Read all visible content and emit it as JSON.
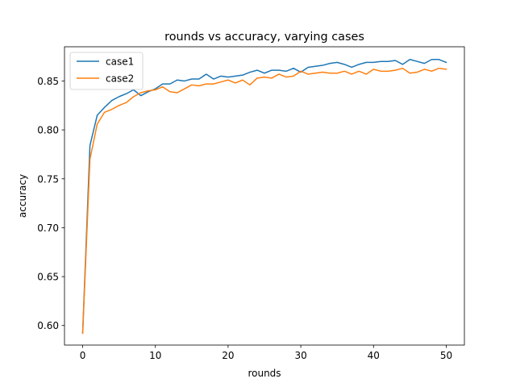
{
  "chart_data": {
    "type": "line",
    "title": "rounds vs accuracy, varying cases",
    "xlabel": "rounds",
    "ylabel": "accuracy",
    "xlim": [
      -2.5,
      52.5
    ],
    "ylim": [
      0.58,
      0.885
    ],
    "xticks": [
      0,
      10,
      20,
      30,
      40,
      50
    ],
    "xtick_labels": [
      "0",
      "10",
      "20",
      "30",
      "40",
      "50"
    ],
    "yticks": [
      0.6,
      0.65,
      0.7,
      0.75,
      0.8,
      0.85
    ],
    "ytick_labels": [
      "0.60",
      "0.65",
      "0.70",
      "0.75",
      "0.80",
      "0.85"
    ],
    "grid": false,
    "legend_position": "top-left",
    "x": [
      0,
      1,
      2,
      3,
      4,
      5,
      6,
      7,
      8,
      9,
      10,
      11,
      12,
      13,
      14,
      15,
      16,
      17,
      18,
      19,
      20,
      21,
      22,
      23,
      24,
      25,
      26,
      27,
      28,
      29,
      30,
      31,
      32,
      33,
      34,
      35,
      36,
      37,
      38,
      39,
      40,
      41,
      42,
      43,
      44,
      45,
      46,
      47,
      48,
      49,
      50
    ],
    "series": [
      {
        "name": "case1",
        "color": "#1f77b4",
        "values": [
          0.593,
          0.784,
          0.815,
          0.823,
          0.83,
          0.834,
          0.837,
          0.841,
          0.835,
          0.839,
          0.842,
          0.847,
          0.847,
          0.851,
          0.85,
          0.852,
          0.852,
          0.857,
          0.852,
          0.855,
          0.854,
          0.855,
          0.856,
          0.859,
          0.861,
          0.858,
          0.861,
          0.861,
          0.86,
          0.863,
          0.859,
          0.864,
          0.865,
          0.866,
          0.868,
          0.869,
          0.867,
          0.864,
          0.867,
          0.869,
          0.869,
          0.87,
          0.87,
          0.871,
          0.867,
          0.872,
          0.87,
          0.868,
          0.872,
          0.872,
          0.869
        ]
      },
      {
        "name": "case2",
        "color": "#ff7f0e",
        "values": [
          0.592,
          0.77,
          0.806,
          0.818,
          0.821,
          0.825,
          0.828,
          0.834,
          0.838,
          0.84,
          0.841,
          0.844,
          0.839,
          0.838,
          0.842,
          0.846,
          0.845,
          0.847,
          0.847,
          0.849,
          0.851,
          0.848,
          0.851,
          0.846,
          0.853,
          0.854,
          0.853,
          0.857,
          0.854,
          0.855,
          0.86,
          0.857,
          0.858,
          0.859,
          0.858,
          0.858,
          0.86,
          0.857,
          0.86,
          0.857,
          0.862,
          0.86,
          0.86,
          0.861,
          0.863,
          0.858,
          0.859,
          0.862,
          0.86,
          0.863,
          0.862
        ]
      }
    ]
  }
}
